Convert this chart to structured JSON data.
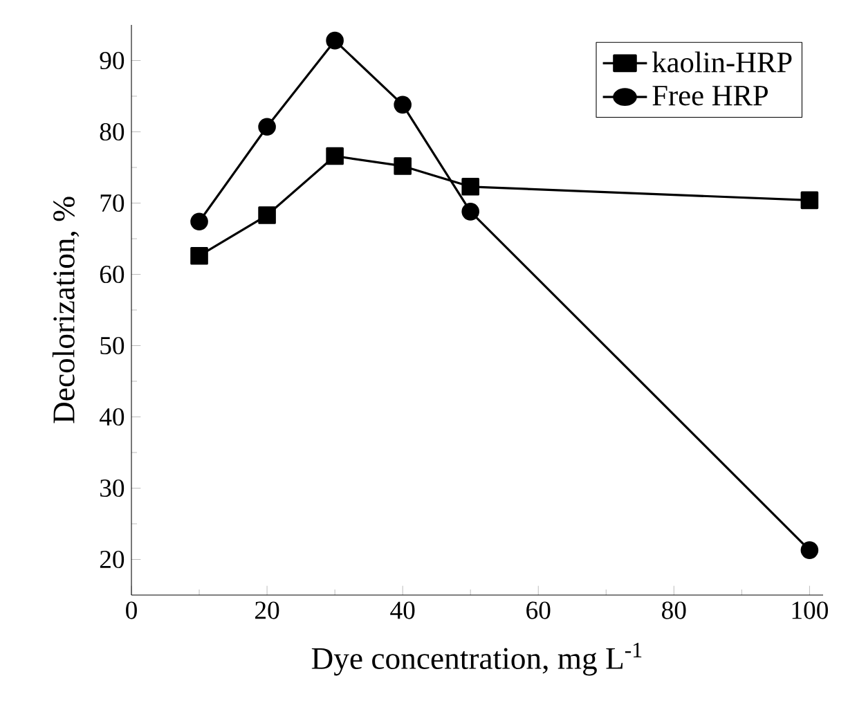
{
  "chart_data": {
    "type": "line",
    "xlabel": "Dye concentration, mg L$^{-1}$",
    "ylabel": "Decolorization, %",
    "x": [
      10,
      20,
      30,
      40,
      50,
      100
    ],
    "series": [
      {
        "name": "kaolin-HRP",
        "color": "#000000",
        "marker": "square",
        "values": [
          62.6,
          68.3,
          76.6,
          75.2,
          72.3,
          70.4
        ]
      },
      {
        "name": "Free HRP",
        "color": "#000000",
        "marker": "circle",
        "values": [
          67.4,
          80.7,
          92.8,
          83.8,
          68.8,
          21.3
        ]
      }
    ],
    "xlim": [
      0,
      102
    ],
    "ylim": [
      15,
      95
    ],
    "xticks": [
      0,
      20,
      40,
      60,
      80,
      100
    ],
    "yticks": [
      20,
      30,
      40,
      50,
      60,
      70,
      80,
      90
    ],
    "legend": "top right",
    "grid": false,
    "line_style": "solid"
  }
}
